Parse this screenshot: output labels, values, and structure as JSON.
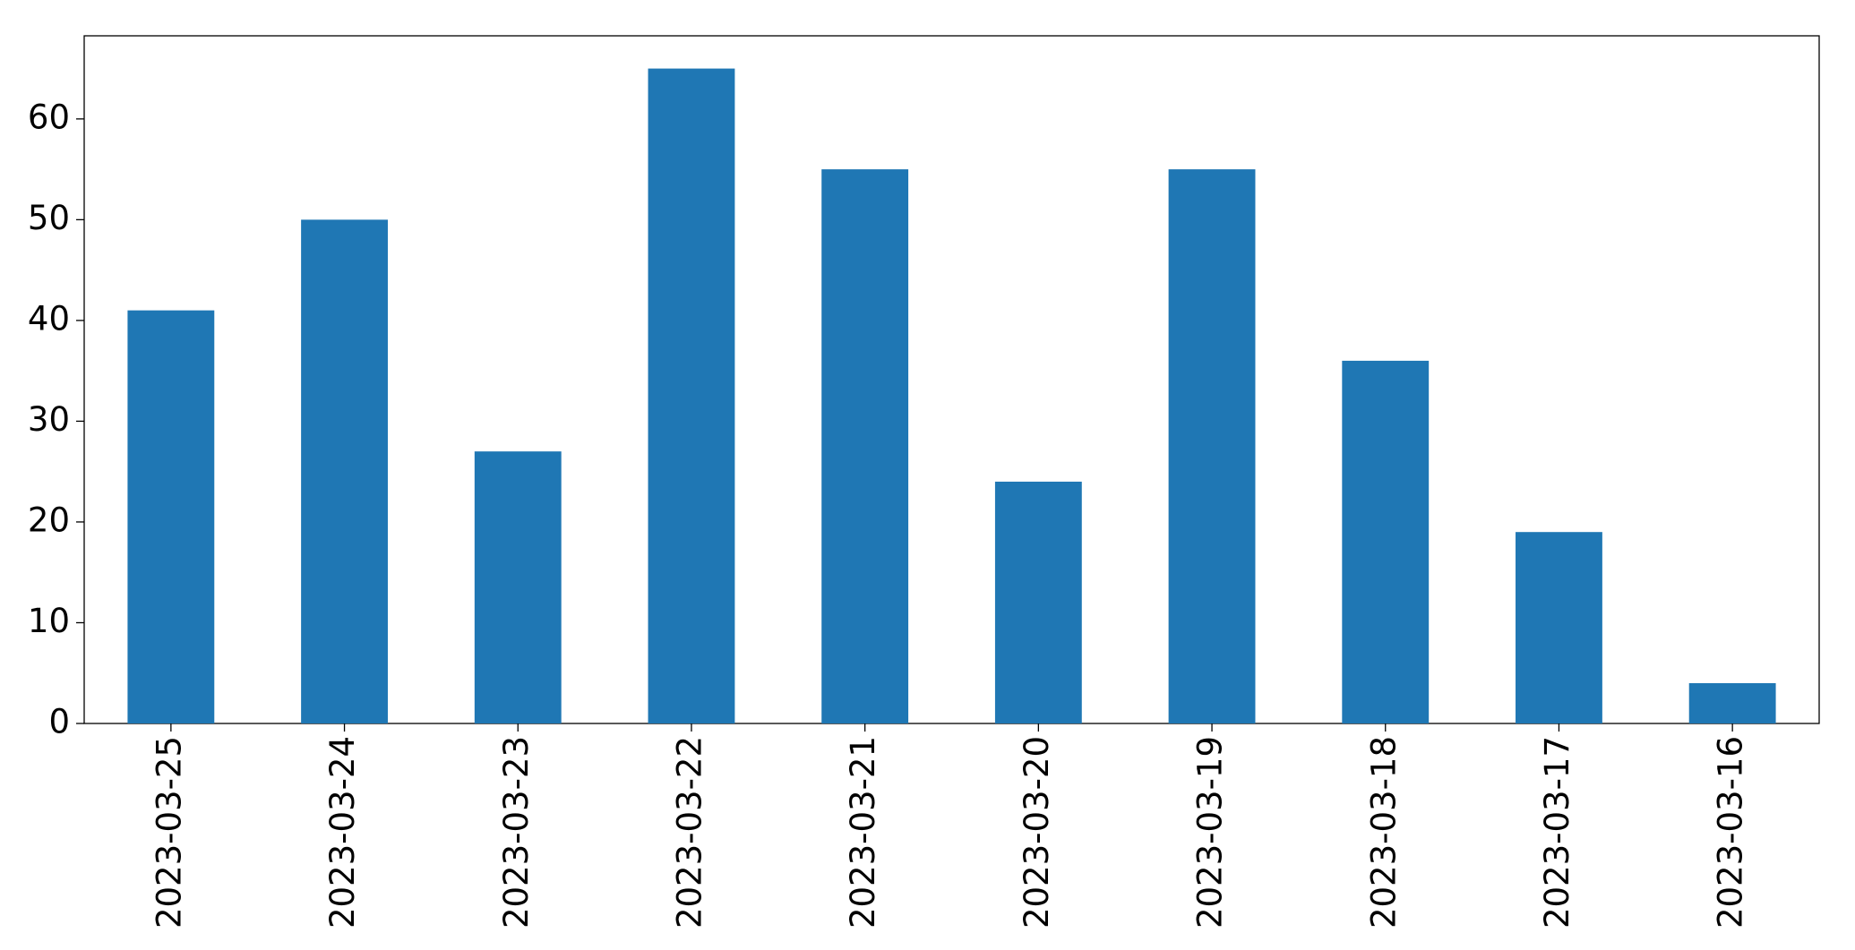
{
  "chart_data": {
    "type": "bar",
    "categories": [
      "2023-03-25",
      "2023-03-24",
      "2023-03-23",
      "2023-03-22",
      "2023-03-21",
      "2023-03-20",
      "2023-03-19",
      "2023-03-18",
      "2023-03-17",
      "2023-03-16"
    ],
    "values": [
      41,
      50,
      27,
      65,
      55,
      24,
      55,
      36,
      19,
      4
    ],
    "color": "#1f77b4",
    "ylim": [
      0,
      68.25
    ],
    "yticks": [
      0,
      10,
      20,
      30,
      40,
      50,
      60
    ],
    "grid": false
  }
}
